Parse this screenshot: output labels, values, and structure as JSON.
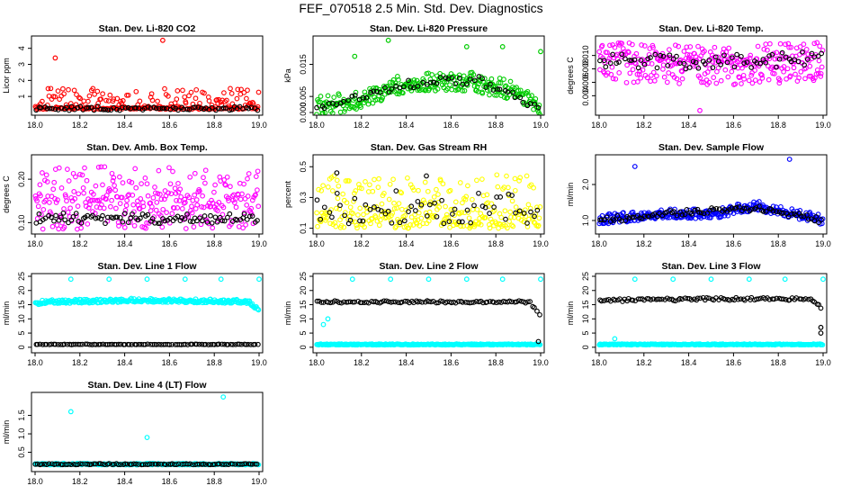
{
  "title": "FEF_070518  2.5 Min. Std. Dev. Diagnostics",
  "colors": {
    "red": "#ff0000",
    "green": "#00cc00",
    "magenta": "#ff00ff",
    "yellow": "#ffff00",
    "blue": "#0000ff",
    "cyan": "#00ffff",
    "black": "#000000"
  },
  "chart_data": [
    {
      "type": "scatter",
      "title": "Stan. Dev. Li-820 CO2",
      "ylabel": "Licor ppm",
      "xlim": [
        18.0,
        19.0
      ],
      "ylim": [
        0,
        4.6
      ],
      "xticks": [
        "18.0",
        "18.2",
        "18.4",
        "18.6",
        "18.8",
        "19.0"
      ],
      "yticks": [
        "1",
        "2",
        "3",
        "4"
      ],
      "series": [
        {
          "name": "primary",
          "color": "red",
          "outliers": [
            [
              18.09,
              3.4
            ],
            [
              18.57,
              4.5
            ]
          ],
          "profile": [
            [
              18.0,
              0.3
            ],
            [
              18.5,
              0.3
            ],
            [
              19.0,
              0.3
            ]
          ],
          "band": [
            0.1,
            1.2
          ],
          "n": 260
        },
        {
          "name": "secondary",
          "color": "black",
          "outliers": [],
          "profile": [
            [
              18.0,
              0.25
            ],
            [
              19.0,
              0.25
            ]
          ],
          "band": [
            0.12,
            0.12
          ],
          "n": 80
        }
      ]
    },
    {
      "type": "scatter",
      "title": "Stan. Dev. Li-820 Pressure",
      "ylabel": "kPa",
      "xlim": [
        18.0,
        19.0
      ],
      "ylim": [
        0,
        0.023
      ],
      "xticks": [
        "18.0",
        "18.2",
        "18.4",
        "18.6",
        "18.8",
        "19.0"
      ],
      "yticks": [
        "0.000",
        "0.005",
        "0.015"
      ],
      "series": [
        {
          "name": "primary",
          "color": "green",
          "outliers": [
            [
              18.17,
              0.0175
            ],
            [
              18.32,
              0.0225
            ],
            [
              18.67,
              0.0205
            ],
            [
              18.83,
              0.0205
            ],
            [
              19.0,
              0.019
            ]
          ],
          "profile": [
            [
              18.0,
              0.002
            ],
            [
              18.2,
              0.004
            ],
            [
              18.35,
              0.0085
            ],
            [
              18.5,
              0.0095
            ],
            [
              18.7,
              0.0095
            ],
            [
              18.9,
              0.0065
            ],
            [
              19.0,
              0.002
            ]
          ],
          "band": [
            0.003,
            0.003
          ],
          "n": 300
        },
        {
          "name": "secondary",
          "color": "black",
          "outliers": [],
          "profile": [
            [
              18.0,
              0.001
            ],
            [
              18.4,
              0.009
            ],
            [
              18.7,
              0.0105
            ],
            [
              19.0,
              0.001
            ]
          ],
          "band": [
            0.0015,
            0.0015
          ],
          "n": 60
        }
      ]
    },
    {
      "type": "scatter",
      "title": "Stan. Dev. Li-820 Temp.",
      "ylabel": "degrees C",
      "xlim": [
        18.0,
        19.0
      ],
      "ylim": [
        0.0015,
        0.0125
      ],
      "xticks": [
        "18.0",
        "18.2",
        "18.4",
        "18.6",
        "18.8",
        "19.0"
      ],
      "yticks": [
        "0.004",
        "0.006",
        "0.008",
        "0.010"
      ],
      "series": [
        {
          "name": "primary",
          "color": "magenta",
          "outliers": [
            [
              18.45,
              0.0018
            ]
          ],
          "profile": [
            [
              18.0,
              0.0095
            ],
            [
              18.5,
              0.009
            ],
            [
              19.0,
              0.0095
            ]
          ],
          "band": [
            0.0035,
            0.0025
          ],
          "n": 320
        },
        {
          "name": "secondary",
          "color": "black",
          "outliers": [],
          "profile": [
            [
              18.0,
              0.0095
            ],
            [
              18.4,
              0.0088
            ],
            [
              19.0,
              0.0095
            ]
          ],
          "band": [
            0.0012,
            0.0012
          ],
          "n": 70
        }
      ]
    },
    {
      "type": "scatter",
      "title": "Stan. Dev. Amb. Box Temp.",
      "ylabel": "degrees C",
      "xlim": [
        18.0,
        19.0
      ],
      "ylim": [
        0.08,
        0.25
      ],
      "xticks": [
        "18.0",
        "18.2",
        "18.4",
        "18.6",
        "18.8",
        "19.0"
      ],
      "yticks": [
        "0.10",
        "0.20"
      ],
      "series": [
        {
          "name": "primary",
          "color": "magenta",
          "outliers": [],
          "profile": [
            [
              18.0,
              0.15
            ],
            [
              19.0,
              0.15
            ]
          ],
          "band": [
            0.065,
            0.08
          ],
          "n": 300
        },
        {
          "name": "secondary",
          "color": "black",
          "outliers": [],
          "profile": [
            [
              18.0,
              0.11
            ],
            [
              19.0,
              0.11
            ]
          ],
          "band": [
            0.012,
            0.012
          ],
          "n": 90
        }
      ]
    },
    {
      "type": "scatter",
      "title": "Stan. Dev. Gas Stream RH",
      "ylabel": "percent",
      "xlim": [
        18.0,
        19.0
      ],
      "ylim": [
        0.08,
        0.56
      ],
      "xticks": [
        "18.0",
        "18.2",
        "18.4",
        "18.6",
        "18.8",
        "19.0"
      ],
      "yticks": [
        "0.1",
        "0.3",
        "0.5"
      ],
      "series": [
        {
          "name": "primary",
          "color": "yellow",
          "outliers": [],
          "profile": [
            [
              18.0,
              0.2
            ],
            [
              19.0,
              0.2
            ]
          ],
          "band": [
            0.1,
            0.25
          ],
          "n": 300
        },
        {
          "name": "secondary",
          "color": "black",
          "outliers": [
            [
              18.09,
              0.46
            ],
            [
              18.49,
              0.44
            ]
          ],
          "profile": [
            [
              18.0,
              0.2
            ],
            [
              19.0,
              0.2
            ]
          ],
          "band": [
            0.07,
            0.17
          ],
          "n": 60
        }
      ]
    },
    {
      "type": "scatter",
      "title": "Stan. Dev. Sample Flow",
      "ylabel": "ml/min",
      "xlim": [
        18.0,
        19.0
      ],
      "ylim": [
        0.7,
        2.75
      ],
      "xticks": [
        "18.0",
        "18.2",
        "18.4",
        "18.6",
        "18.8",
        "19.0"
      ],
      "yticks": [
        "1.0",
        "2.0"
      ],
      "series": [
        {
          "name": "primary",
          "color": "blue",
          "outliers": [
            [
              18.16,
              2.5
            ],
            [
              18.85,
              2.7
            ]
          ],
          "profile": [
            [
              18.0,
              1.0
            ],
            [
              18.3,
              1.2
            ],
            [
              18.5,
              1.15
            ],
            [
              18.7,
              1.4
            ],
            [
              18.85,
              1.2
            ],
            [
              19.0,
              1.0
            ]
          ],
          "band": [
            0.12,
            0.16
          ],
          "n": 300
        },
        {
          "name": "secondary",
          "color": "black",
          "outliers": [],
          "profile": [
            [
              18.0,
              1.0
            ],
            [
              18.3,
              1.2
            ],
            [
              18.7,
              1.35
            ],
            [
              19.0,
              1.0
            ]
          ],
          "band": [
            0.08,
            0.08
          ],
          "n": 90
        }
      ]
    },
    {
      "type": "scatter",
      "title": "Stan. Dev. Line 1 Flow",
      "ylabel": "ml/min",
      "xlim": [
        18.0,
        19.0
      ],
      "ylim": [
        -1,
        25
      ],
      "xticks": [
        "18.0",
        "18.2",
        "18.4",
        "18.6",
        "18.8",
        "19.0"
      ],
      "yticks": [
        "0",
        "5",
        "10",
        "15",
        "20",
        "25"
      ],
      "series": [
        {
          "name": "primary",
          "color": "cyan",
          "outliers": [
            [
              18.16,
              24
            ],
            [
              18.33,
              24
            ],
            [
              18.5,
              24
            ],
            [
              18.67,
              24
            ],
            [
              18.83,
              24
            ],
            [
              19.0,
              24
            ]
          ],
          "profile": [
            [
              18.0,
              15.5
            ],
            [
              18.05,
              16
            ],
            [
              18.5,
              16.5
            ],
            [
              18.95,
              16
            ],
            [
              19.0,
              13
            ]
          ],
          "band": [
            0.6,
            0.8
          ],
          "n": 320
        },
        {
          "name": "secondary",
          "color": "black",
          "outliers": [],
          "profile": [
            [
              18.0,
              1
            ],
            [
              19.0,
              1
            ]
          ],
          "band": [
            0.1,
            0.1
          ],
          "n": 100
        }
      ]
    },
    {
      "type": "scatter",
      "title": "Stan. Dev. Line 2 Flow",
      "ylabel": "ml/min",
      "xlim": [
        18.0,
        19.0
      ],
      "ylim": [
        -1,
        25
      ],
      "xticks": [
        "18.0",
        "18.2",
        "18.4",
        "18.6",
        "18.8",
        "19.0"
      ],
      "yticks": [
        "0",
        "5",
        "10",
        "15",
        "20",
        "25"
      ],
      "series": [
        {
          "name": "primary",
          "color": "cyan",
          "outliers": [
            [
              18.03,
              8
            ],
            [
              18.05,
              10
            ],
            [
              18.16,
              24
            ],
            [
              18.33,
              24
            ],
            [
              18.5,
              24
            ],
            [
              18.67,
              24
            ],
            [
              18.83,
              24
            ],
            [
              19.0,
              24
            ]
          ],
          "profile": [
            [
              18.0,
              1
            ],
            [
              19.0,
              1
            ]
          ],
          "band": [
            0.2,
            0.2
          ],
          "n": 320
        },
        {
          "name": "secondary",
          "color": "black",
          "outliers": [
            [
              18.99,
              2
            ]
          ],
          "profile": [
            [
              18.0,
              16
            ],
            [
              18.5,
              16
            ],
            [
              18.95,
              16
            ],
            [
              19.0,
              11
            ]
          ],
          "band": [
            0.4,
            0.4
          ],
          "n": 100
        }
      ]
    },
    {
      "type": "scatter",
      "title": "Stan. Dev. Line 3 Flow",
      "ylabel": "ml/min",
      "xlim": [
        18.0,
        19.0
      ],
      "ylim": [
        -1,
        25
      ],
      "xticks": [
        "18.0",
        "18.2",
        "18.4",
        "18.6",
        "18.8",
        "19.0"
      ],
      "yticks": [
        "0",
        "5",
        "10",
        "15",
        "20",
        "25"
      ],
      "series": [
        {
          "name": "primary",
          "color": "cyan",
          "outliers": [
            [
              18.07,
              3
            ],
            [
              18.16,
              24
            ],
            [
              18.33,
              24
            ],
            [
              18.5,
              24
            ],
            [
              18.67,
              24
            ],
            [
              18.83,
              24
            ],
            [
              19.0,
              24
            ]
          ],
          "profile": [
            [
              18.0,
              1
            ],
            [
              19.0,
              1
            ]
          ],
          "band": [
            0.2,
            0.2
          ],
          "n": 320
        },
        {
          "name": "secondary",
          "color": "black",
          "outliers": [
            [
              18.99,
              5
            ],
            [
              18.99,
              7
            ]
          ],
          "profile": [
            [
              18.0,
              16.5
            ],
            [
              18.5,
              17
            ],
            [
              18.95,
              17
            ],
            [
              19.0,
              13
            ]
          ],
          "band": [
            0.5,
            0.5
          ],
          "n": 100
        }
      ]
    },
    {
      "type": "scatter",
      "title": "Stan. Dev. Line 4 (LT) Flow",
      "ylabel": "ml/min",
      "xlim": [
        18.0,
        19.0
      ],
      "ylim": [
        0.05,
        2.05
      ],
      "xticks": [
        "18.0",
        "18.2",
        "18.4",
        "18.6",
        "18.8",
        "19.0"
      ],
      "yticks": [
        "0.5",
        "1.0",
        "1.5"
      ],
      "series": [
        {
          "name": "primary",
          "color": "cyan",
          "outliers": [
            [
              18.16,
              1.6
            ],
            [
              18.5,
              0.9
            ],
            [
              18.84,
              2.0
            ]
          ],
          "profile": [
            [
              18.0,
              0.18
            ],
            [
              19.0,
              0.18
            ]
          ],
          "band": [
            0.02,
            0.02
          ],
          "n": 300
        },
        {
          "name": "secondary",
          "color": "black",
          "outliers": [],
          "profile": [
            [
              18.0,
              0.18
            ],
            [
              19.0,
              0.18
            ]
          ],
          "band": [
            0.015,
            0.015
          ],
          "n": 100
        }
      ]
    }
  ]
}
